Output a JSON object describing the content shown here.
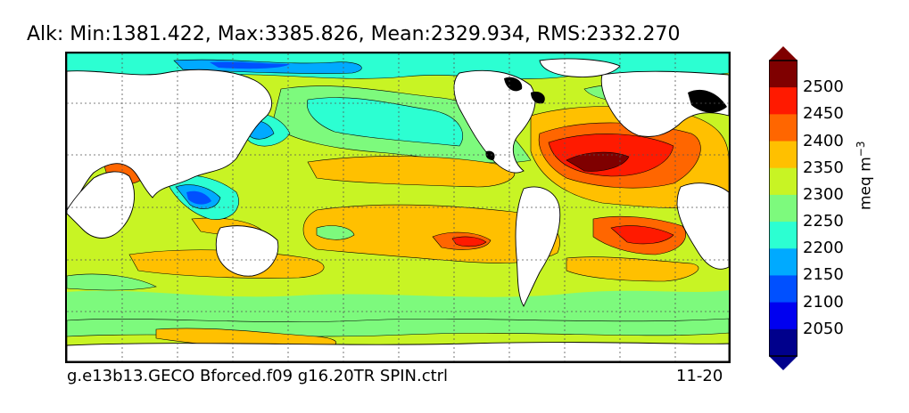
{
  "title": "Alk: Min:1381.422, Max:3385.826, Mean:2329.934, RMS:2332.270",
  "footer": {
    "run_name": "g.e13b13.GECO Bforced.f09 g16.20TR SPIN.ctrl",
    "period": "11-20"
  },
  "colorbar": {
    "unit_label": "meq m",
    "unit_exponent": "−3",
    "ticks": [
      "2500",
      "2450",
      "2400",
      "2350",
      "2300",
      "2250",
      "2200",
      "2150",
      "2100",
      "2050"
    ],
    "colors": [
      "#7f0000",
      "#ff1a00",
      "#ff6600",
      "#ffc000",
      "#c8f424",
      "#7dfa7d",
      "#2cffd2",
      "#00aaff",
      "#0050ff",
      "#0000f0",
      "#00008c"
    ],
    "extend_top_color": "#7f0000",
    "extend_bottom_color": "#00008c"
  },
  "map": {
    "land_color": "#ffffff",
    "coast_color": "#000000",
    "gridlines": "dotted"
  }
}
